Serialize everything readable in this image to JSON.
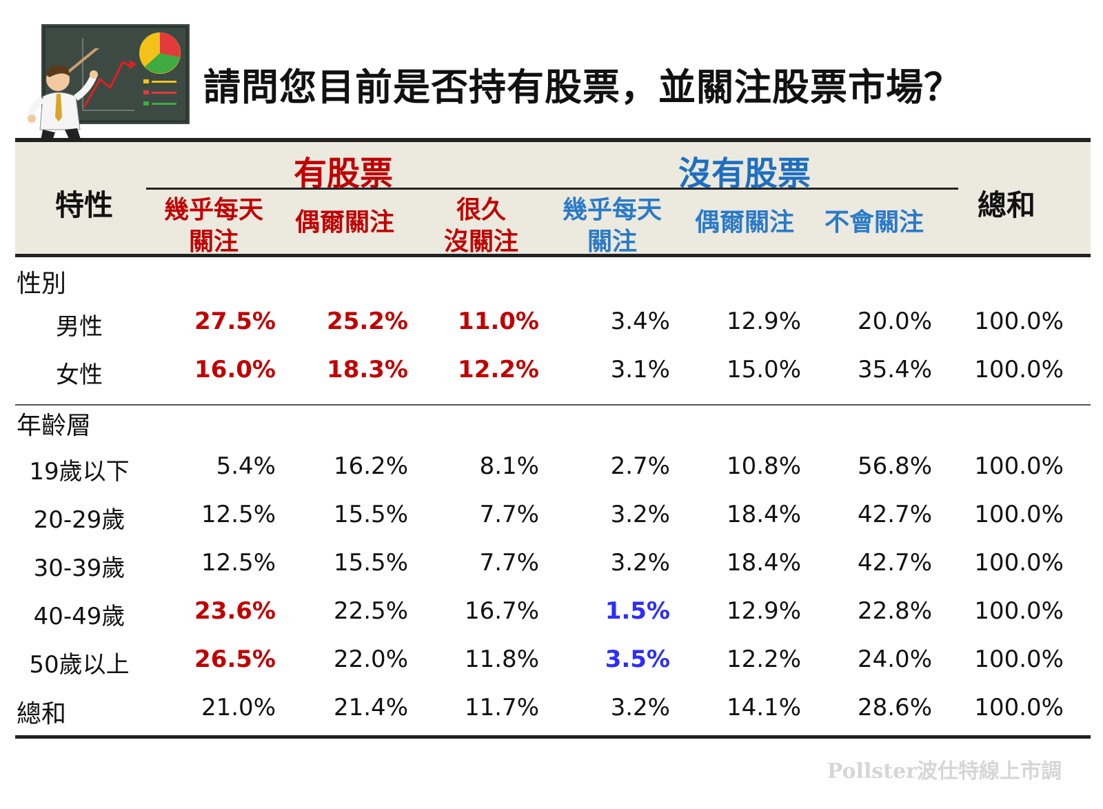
{
  "title": "請問您目前是否持有股票，並關注股票市場？",
  "header": {
    "row_header": "特性",
    "total_header": "總和",
    "group_have": "有股票",
    "group_none": "沒有股票",
    "sub": [
      {
        "l1": "幾乎每天",
        "l2": "關注"
      },
      {
        "l1": "偶爾關注",
        "l2": ""
      },
      {
        "l1": "很久",
        "l2": "沒關注"
      },
      {
        "l1": "幾乎每天",
        "l2": "關注"
      },
      {
        "l1": "偶爾關注",
        "l2": ""
      },
      {
        "l1": "不會關注",
        "l2": ""
      }
    ]
  },
  "sections": [
    {
      "name": "性別",
      "rows": [
        {
          "label": "男性",
          "values": [
            "27.5%",
            "25.2%",
            "11.0%",
            "3.4%",
            "12.9%",
            "20.0%",
            "100.0%"
          ],
          "hl": [
            "red",
            "red",
            "red",
            "",
            "",
            "",
            ""
          ]
        },
        {
          "label": "女性",
          "values": [
            "16.0%",
            "18.3%",
            "12.2%",
            "3.1%",
            "15.0%",
            "35.4%",
            "100.0%"
          ],
          "hl": [
            "red",
            "red",
            "red",
            "",
            "",
            "",
            ""
          ]
        }
      ]
    },
    {
      "name": "年齡層",
      "rows": [
        {
          "label": "19歲以下",
          "values": [
            "5.4%",
            "16.2%",
            "8.1%",
            "2.7%",
            "10.8%",
            "56.8%",
            "100.0%"
          ],
          "hl": [
            "",
            "",
            "",
            "",
            "",
            "",
            ""
          ]
        },
        {
          "label": "20-29歲",
          "values": [
            "12.5%",
            "15.5%",
            "7.7%",
            "3.2%",
            "18.4%",
            "42.7%",
            "100.0%"
          ],
          "hl": [
            "",
            "",
            "",
            "",
            "",
            "",
            ""
          ]
        },
        {
          "label": "30-39歲",
          "values": [
            "12.5%",
            "15.5%",
            "7.7%",
            "3.2%",
            "18.4%",
            "42.7%",
            "100.0%"
          ],
          "hl": [
            "",
            "",
            "",
            "",
            "",
            "",
            ""
          ]
        },
        {
          "label": "40-49歲",
          "values": [
            "23.6%",
            "22.5%",
            "16.7%",
            "1.5%",
            "12.9%",
            "22.8%",
            "100.0%"
          ],
          "hl": [
            "red",
            "",
            "",
            "blue",
            "",
            "",
            ""
          ]
        },
        {
          "label": "50歲以上",
          "values": [
            "26.5%",
            "22.0%",
            "11.8%",
            "3.5%",
            "12.2%",
            "24.0%",
            "100.0%"
          ],
          "hl": [
            "red",
            "",
            "",
            "blue",
            "",
            "",
            ""
          ]
        }
      ]
    }
  ],
  "total_row": {
    "label": "總和",
    "values": [
      "21.0%",
      "21.4%",
      "11.7%",
      "3.2%",
      "14.1%",
      "28.6%",
      "100.0%"
    ]
  },
  "footer": "Pollster波仕特線上市調",
  "colors": {
    "red": "#c00000",
    "blue_header": "#1e6fc0",
    "blue_value": "#2d2dff",
    "header_band": "#ece9de"
  },
  "icons": {
    "logo": "presenter-with-chart-icon"
  }
}
